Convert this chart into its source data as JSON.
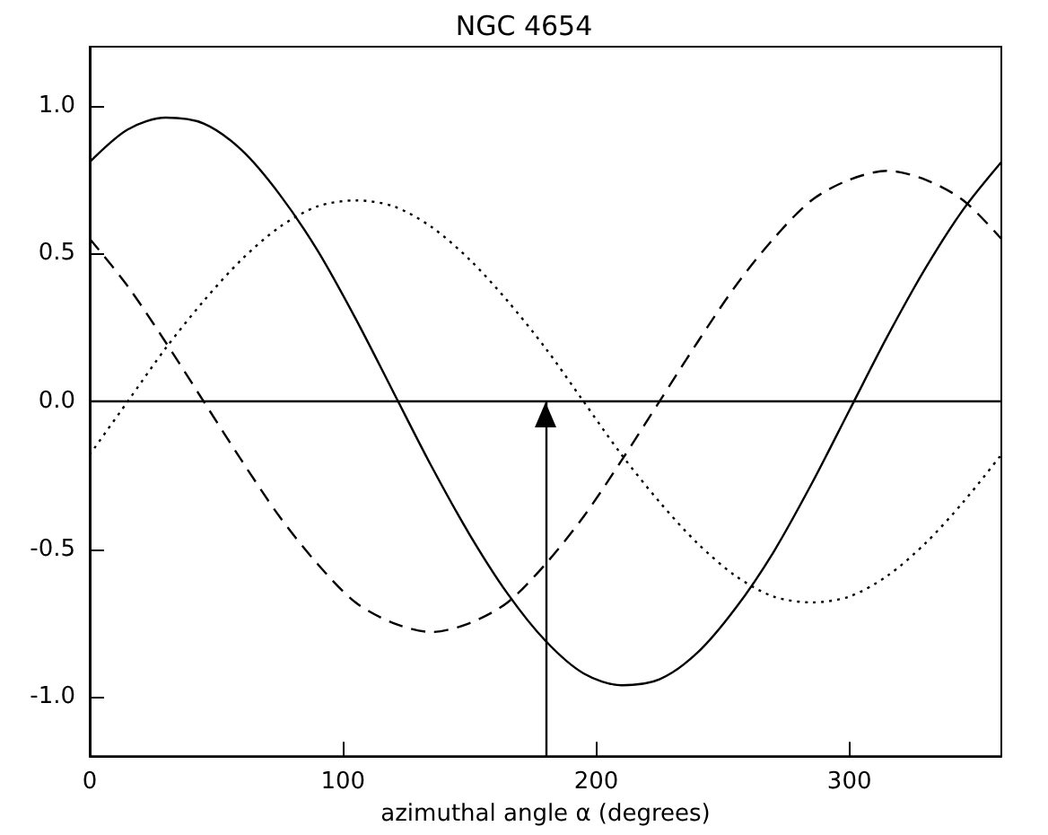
{
  "chart_data": {
    "type": "line",
    "title": "NGC 4654",
    "xlabel": "azimuthal angle α (degrees)",
    "x": [
      0,
      15,
      30,
      45,
      60,
      75,
      90,
      105,
      120,
      135,
      150,
      165,
      180,
      195,
      210,
      225,
      240,
      255,
      270,
      285,
      300,
      315,
      330,
      345,
      360
    ],
    "series": [
      {
        "color": "#000000",
        "line_style": "solid",
        "values": [
          0.81,
          0.92,
          0.96,
          0.94,
          0.85,
          0.7,
          0.51,
          0.28,
          0.03,
          -0.22,
          -0.45,
          -0.65,
          -0.81,
          -0.92,
          -0.96,
          -0.94,
          -0.85,
          -0.7,
          -0.51,
          -0.28,
          -0.03,
          0.22,
          0.45,
          0.65,
          0.81
        ]
      },
      {
        "color": "#000000",
        "line_style": "dotted",
        "values": [
          -0.18,
          0,
          0.18,
          0.34,
          0.48,
          0.59,
          0.66,
          0.68,
          0.66,
          0.59,
          0.48,
          0.34,
          0.18,
          0,
          -0.18,
          -0.34,
          -0.48,
          -0.59,
          -0.66,
          -0.68,
          -0.66,
          -0.59,
          -0.48,
          -0.34,
          -0.18
        ]
      },
      {
        "color": "#000000",
        "line_style": "dashed",
        "values": [
          0.55,
          0.39,
          0.2,
          0,
          -0.2,
          -0.39,
          -0.55,
          -0.68,
          -0.75,
          -0.78,
          -0.75,
          -0.68,
          -0.55,
          -0.39,
          -0.2,
          0,
          0.2,
          0.39,
          0.55,
          0.68,
          0.75,
          0.78,
          0.75,
          0.68,
          0.55
        ]
      }
    ],
    "xlim": [
      0,
      360
    ],
    "xticks": [
      0,
      100,
      200,
      300
    ],
    "ylim": [
      -1.2,
      1.2
    ],
    "yticks": [
      {
        "value": -1,
        "label": "-1.0"
      },
      {
        "value": -0.5,
        "label": "-0.5"
      },
      {
        "value": 0,
        "label": "0.0"
      },
      {
        "value": 0.5,
        "label": "0.5"
      },
      {
        "value": 1,
        "label": "1.0"
      }
    ],
    "ref_lines": [
      {
        "axis": "y",
        "value": 0,
        "color": "#000000"
      },
      {
        "axis": "x",
        "value": 180,
        "color": "#000000"
      }
    ],
    "grid": false,
    "marker": "none"
  }
}
